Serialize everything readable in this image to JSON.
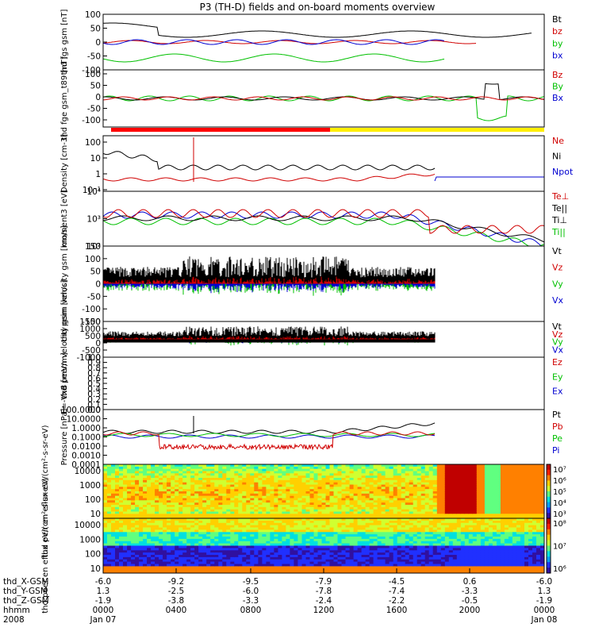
{
  "title": "P3 (TH-D) fields and on-board moments overview",
  "x_axis": {
    "x": [
      -6.0,
      -9.2,
      -9.5,
      -7.9,
      -4.5,
      0.6,
      -6.0
    ],
    "rows": [
      {
        "name": "thd_X-GSM",
        "values": [
          "-6.0",
          "-9.2",
          "-9.5",
          "-7.9",
          "-4.5",
          "0.6",
          "-6.0"
        ]
      },
      {
        "name": "thd_Y-GSM",
        "values": [
          "1.3",
          "-2.5",
          "-6.0",
          "-7.8",
          "-7.4",
          "-3.3",
          "1.3"
        ]
      },
      {
        "name": "thd_Z-GSM",
        "values": [
          "-1.9",
          "-3.8",
          "-3.3",
          "-2.4",
          "-2.2",
          "-0.5",
          "-1.9"
        ]
      },
      {
        "name": "hhmm",
        "values": [
          "0000",
          "0400",
          "0800",
          "1200",
          "1600",
          "2000",
          "0000"
        ]
      },
      {
        "name": "2008",
        "values": [
          "Jan 07",
          "",
          "",
          "",
          "",
          "",
          "Jan 08"
        ]
      }
    ]
  },
  "chart_data": [
    {
      "type": "line",
      "ylabel": "thd fgs gsm [nT]",
      "ylim": [
        -100,
        100
      ],
      "ticks": [
        "100",
        "50",
        "0",
        "-50",
        "-100"
      ],
      "legend": [
        {
          "label": "Bt",
          "color": "#000000"
        },
        {
          "label": "bz",
          "color": "#d00000"
        },
        {
          "label": "by",
          "color": "#00c000"
        },
        {
          "label": "bx",
          "color": "#0000d0"
        }
      ]
    },
    {
      "type": "line",
      "ylabel": "thd fge gsm_t89 [nT]",
      "ylim": [
        -120,
        100
      ],
      "ticks": [
        "100",
        "50",
        "0",
        "-50",
        "-100"
      ],
      "legend": [
        {
          "label": "Bz",
          "color": "#d00000"
        },
        {
          "label": "By",
          "color": "#00c000"
        },
        {
          "label": "Bx",
          "color": "#0000d0"
        }
      ]
    },
    {
      "type": "line",
      "ylabel": "Density [cm-3]",
      "scale": "log",
      "ylim": [
        0.1,
        100
      ],
      "ticks": [
        "100",
        "10",
        "1",
        "10⁻¹"
      ],
      "legend": [
        {
          "label": "Ne",
          "color": "#d00000"
        },
        {
          "label": "Ni",
          "color": "#000000"
        },
        {
          "label": "Npot",
          "color": "#0000d0"
        }
      ]
    },
    {
      "type": "line",
      "ylabel": "moment3 [eV]",
      "scale": "log",
      "ylim": [
        100,
        30000
      ],
      "ticks": [
        "10⁴",
        "10³",
        "10²"
      ],
      "legend": [
        {
          "label": "Te⊥",
          "color": "#d00000"
        },
        {
          "label": "Te||",
          "color": "#000000"
        },
        {
          "label": "Ti⊥",
          "color": "#000000"
        },
        {
          "label": "Ti||",
          "color": "#00c000"
        }
      ]
    },
    {
      "type": "line",
      "ylabel": "thd peim velocity gsm [km/s]",
      "ylim": [
        -150,
        150
      ],
      "ticks": [
        "150",
        "100",
        "50",
        "0",
        "-50",
        "-100",
        "-150"
      ],
      "legend": [
        {
          "label": "Vt",
          "color": "#000000"
        },
        {
          "label": "Vz",
          "color": "#d00000"
        },
        {
          "label": "Vy",
          "color": "#00c000"
        },
        {
          "label": "Vx",
          "color": "#0000d0"
        }
      ]
    },
    {
      "type": "line",
      "ylabel": "thd peem velocity gsm [km/s]",
      "ylim": [
        -1200,
        1500
      ],
      "ticks": [
        "1500",
        "1000",
        "500",
        "0",
        "-500",
        "-1000"
      ],
      "legend": [
        {
          "label": "Vt",
          "color": "#000000"
        },
        {
          "label": "Vz",
          "color": "#d00000"
        },
        {
          "label": "Vy",
          "color": "#00c000"
        },
        {
          "label": "Vx",
          "color": "#0000d0"
        }
      ]
    },
    {
      "type": "line",
      "ylabel": "E=-VxB [mV/m]",
      "ylim": [
        0,
        1
      ],
      "ticks": [
        "1.0",
        "0.9",
        "0.8",
        "0.7",
        "0.6",
        "0.5",
        "0.4",
        "0.3",
        "0.2",
        "0.1",
        "0.0"
      ],
      "legend": [
        {
          "label": "Ez",
          "color": "#d00000"
        },
        {
          "label": "Ey",
          "color": "#00c000"
        },
        {
          "label": "Ex",
          "color": "#0000d0"
        }
      ]
    },
    {
      "type": "line",
      "ylabel": "Pressure [nPa]",
      "scale": "log",
      "ylim": [
        0.0001,
        100
      ],
      "ticks": [
        "100.0000",
        "10.0000",
        "1.0000",
        "0.1000",
        "0.0100",
        "0.0010",
        "0.0001"
      ],
      "legend": [
        {
          "label": "Pt",
          "color": "#000000"
        },
        {
          "label": "Pb",
          "color": "#d00000"
        },
        {
          "label": "Pe",
          "color": "#00c000"
        },
        {
          "label": "Pi",
          "color": "#0000d0"
        }
      ]
    },
    {
      "type": "heatmap",
      "ylabel": "thd peir en eflux eV/(cm²-s-sr-eV)",
      "scale": "log",
      "ticks": [
        "10000",
        "1000",
        "100",
        "10"
      ],
      "colorbar": [
        "10⁷",
        "10⁶",
        "10⁵",
        "10⁴",
        "10³"
      ]
    },
    {
      "type": "heatmap",
      "ylabel": "thd peer en eflux eV/(cm²-s-sr-eV)",
      "scale": "log",
      "ticks": [
        "10000",
        "1000",
        "100",
        "10"
      ],
      "colorbar": [
        "10⁸",
        "10⁷",
        "10⁶"
      ]
    }
  ]
}
